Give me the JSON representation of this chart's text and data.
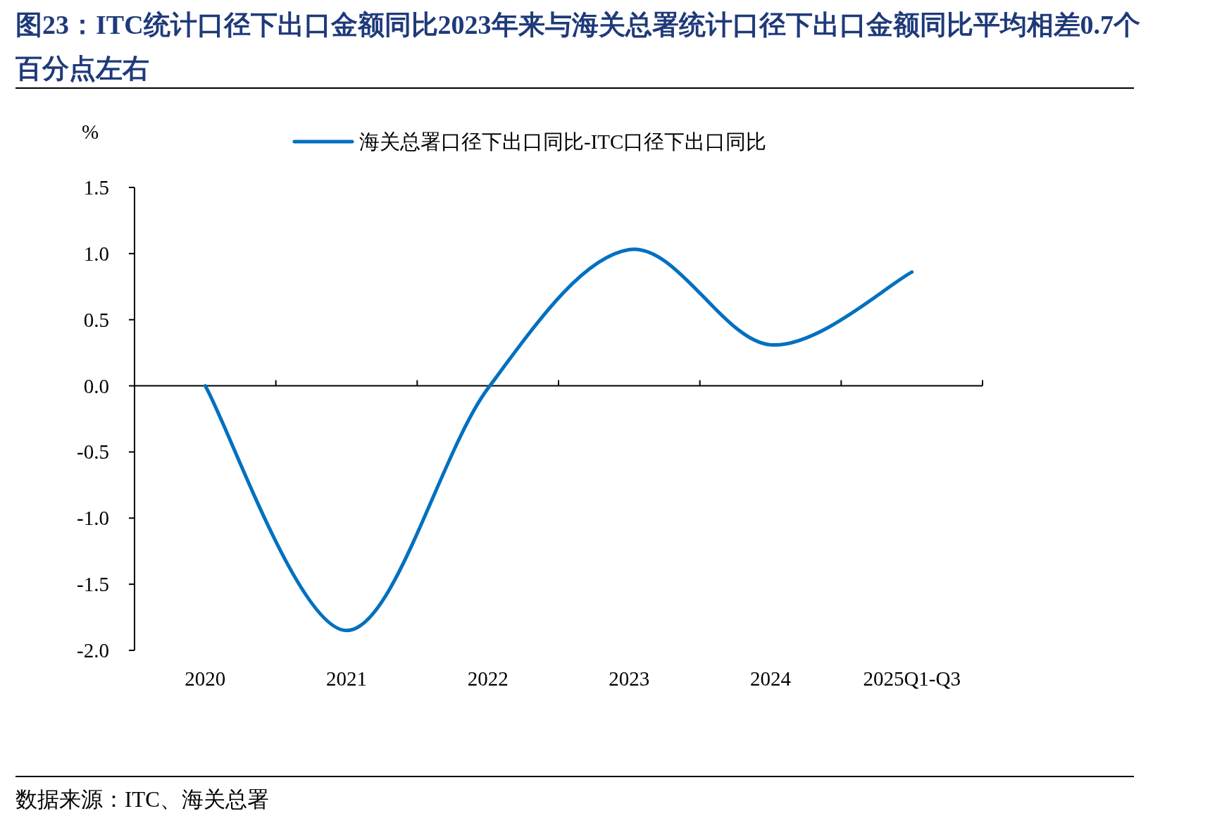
{
  "chart_data": {
    "type": "line",
    "title": "图23：ITC统计口径下出口金额同比2023年来与海关总署统计口径下出口金额同比平均相差0.7个百分点左右",
    "ylabel": "%",
    "categories": [
      "2020",
      "2021",
      "2022",
      "2023",
      "2024",
      "2025Q1-Q3"
    ],
    "series": [
      {
        "name": "海关总署口径下出口同比-ITC口径下出口同比",
        "color": "#0070c0",
        "values": [
          0.0,
          -1.85,
          -0.02,
          1.03,
          0.31,
          0.86
        ]
      }
    ],
    "ylim": [
      -2.0,
      1.5
    ],
    "yticks": [
      {
        "value": -2,
        "label": "-2.0"
      },
      -1.5,
      {
        "value": -1,
        "label": "-1.0"
      },
      -0.5,
      {
        "value": 0,
        "label": "0.0"
      },
      0.5,
      {
        "value": 1,
        "label": "1.0"
      },
      1.5
    ],
    "legend": "top",
    "annotations": [
      "数据来源：ITC、海关总署"
    ]
  }
}
